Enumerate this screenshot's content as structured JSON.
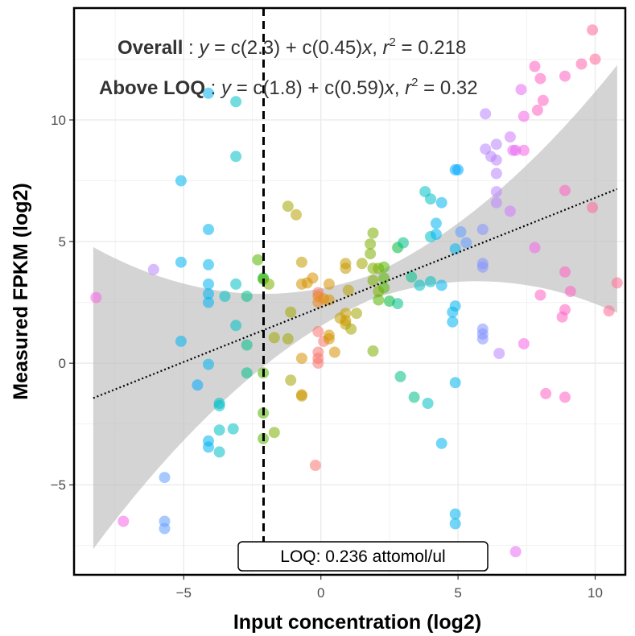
{
  "chart_data": {
    "type": "scatter",
    "xlabel": "Input concentration (log2)",
    "ylabel": "Measured FPKM (log2)",
    "xlim": [
      -9,
      11.1
    ],
    "ylim": [
      -8.7,
      14.6
    ],
    "x_ticks": [
      -5,
      0,
      5,
      10
    ],
    "x_tick_labels": [
      "−5",
      "0",
      "5",
      "10"
    ],
    "y_ticks": [
      -5,
      0,
      5,
      10
    ],
    "y_tick_labels": [
      "−5",
      "0",
      "5",
      "10"
    ],
    "grid": true,
    "panel_border": true,
    "loq_line": {
      "x": -2.09,
      "style": "dashed",
      "color": "#000000"
    },
    "loq_label": "LOQ: 0.236 attomol/ul",
    "equations": [
      {
        "label": "Overall",
        "intercept": "2.3",
        "slope": "0.45",
        "r2": "0.218"
      },
      {
        "label": "Above LOQ",
        "intercept": "1.8",
        "slope": "0.59",
        "r2": "0.32"
      }
    ],
    "fit": {
      "intercept": 2.3,
      "slope": 0.45,
      "x_range": [
        -8.3,
        10.8
      ],
      "line_style": "dotted",
      "ci_color": "#bdbdbd"
    },
    "point_opacity": 0.55,
    "points": [
      {
        "x": -8.2,
        "y": 2.7,
        "color": "#f564e3"
      },
      {
        "x": -7.2,
        "y": -6.5,
        "color": "#f564e3"
      },
      {
        "x": -6.1,
        "y": 3.85,
        "color": "#b983ff"
      },
      {
        "x": -5.7,
        "y": -4.7,
        "color": "#619cff"
      },
      {
        "x": -5.7,
        "y": -6.5,
        "color": "#619cff"
      },
      {
        "x": -5.7,
        "y": -6.8,
        "color": "#619cff"
      },
      {
        "x": -5.1,
        "y": 7.5,
        "color": "#00b4f0"
      },
      {
        "x": -5.1,
        "y": 4.15,
        "color": "#00b4f0"
      },
      {
        "x": -5.1,
        "y": 0.9,
        "color": "#00b4f0"
      },
      {
        "x": -4.5,
        "y": -0.9,
        "color": "#00a9ff"
      },
      {
        "x": -4.1,
        "y": 11.1,
        "color": "#00b4f0"
      },
      {
        "x": -4.1,
        "y": 5.5,
        "color": "#00b4f0"
      },
      {
        "x": -4.1,
        "y": 4.05,
        "color": "#00b4f0"
      },
      {
        "x": -4.1,
        "y": 3.25,
        "color": "#00b4f0"
      },
      {
        "x": -4.1,
        "y": 2.85,
        "color": "#00b4f0"
      },
      {
        "x": -4.1,
        "y": 2.5,
        "color": "#00b4f0"
      },
      {
        "x": -4.1,
        "y": -0.05,
        "color": "#00b4f0"
      },
      {
        "x": -4.1,
        "y": -3.2,
        "color": "#00b4f0"
      },
      {
        "x": -4.1,
        "y": -3.45,
        "color": "#00b4f0"
      },
      {
        "x": -3.7,
        "y": -1.65,
        "color": "#00bfc4"
      },
      {
        "x": -3.7,
        "y": -1.75,
        "color": "#00bfc4"
      },
      {
        "x": -3.7,
        "y": -2.75,
        "color": "#00bfc4"
      },
      {
        "x": -3.7,
        "y": -3.65,
        "color": "#00bfc4"
      },
      {
        "x": -3.5,
        "y": 2.75,
        "color": "#00bfc4"
      },
      {
        "x": -3.1,
        "y": 10.75,
        "color": "#00bfc4"
      },
      {
        "x": -3.1,
        "y": 8.5,
        "color": "#00bfc4"
      },
      {
        "x": -3.1,
        "y": 3.25,
        "color": "#00bfc4"
      },
      {
        "x": -3.1,
        "y": 1.55,
        "color": "#00bfc4"
      },
      {
        "x": -3.2,
        "y": -2.7,
        "color": "#00bfc4"
      },
      {
        "x": -2.7,
        "y": 2.75,
        "color": "#00c08b"
      },
      {
        "x": -2.7,
        "y": 0.75,
        "color": "#00c08b"
      },
      {
        "x": -2.7,
        "y": -0.4,
        "color": "#00c08b"
      },
      {
        "x": -2.3,
        "y": 4.25,
        "color": "#53b400"
      },
      {
        "x": -2.1,
        "y": 3.5,
        "color": "#00ba38"
      },
      {
        "x": -2.1,
        "y": 3.45,
        "color": "#53b400"
      },
      {
        "x": -1.9,
        "y": 3.25,
        "color": "#7cae00"
      },
      {
        "x": -2.1,
        "y": -0.4,
        "color": "#53b400"
      },
      {
        "x": -2.1,
        "y": -2.05,
        "color": "#53b400"
      },
      {
        "x": -2.1,
        "y": -3.1,
        "color": "#53b400"
      },
      {
        "x": -1.7,
        "y": -2.85,
        "color": "#7cae00"
      },
      {
        "x": -1.7,
        "y": 1.05,
        "color": "#a3a500"
      },
      {
        "x": -1.2,
        "y": 6.45,
        "color": "#a3a500"
      },
      {
        "x": -0.9,
        "y": 6.1,
        "color": "#b8a000"
      },
      {
        "x": -1.1,
        "y": 2.1,
        "color": "#a3a500"
      },
      {
        "x": -1.2,
        "y": 1.0,
        "color": "#a3a500"
      },
      {
        "x": -1.1,
        "y": -0.7,
        "color": "#a3a500"
      },
      {
        "x": -0.7,
        "y": 4.15,
        "color": "#c49a00"
      },
      {
        "x": -0.7,
        "y": 3.25,
        "color": "#d39200"
      },
      {
        "x": -0.5,
        "y": 3.3,
        "color": "#d39200"
      },
      {
        "x": -0.7,
        "y": 0.2,
        "color": "#d39200"
      },
      {
        "x": -0.7,
        "y": -1.3,
        "color": "#d39200"
      },
      {
        "x": -0.7,
        "y": -1.35,
        "color": "#c49a00"
      },
      {
        "x": -0.3,
        "y": 3.5,
        "color": "#d89000"
      },
      {
        "x": -0.1,
        "y": 2.9,
        "color": "#f8766d"
      },
      {
        "x": -0.1,
        "y": 2.75,
        "color": "#e7861b"
      },
      {
        "x": -0.1,
        "y": 2.5,
        "color": "#e7861b"
      },
      {
        "x": 0.1,
        "y": 2.65,
        "color": "#e7861b"
      },
      {
        "x": -0.1,
        "y": 1.3,
        "color": "#f8766d"
      },
      {
        "x": -0.1,
        "y": 0.45,
        "color": "#f8766d"
      },
      {
        "x": -0.1,
        "y": 0.2,
        "color": "#f8766d"
      },
      {
        "x": -0.1,
        "y": 0.0,
        "color": "#f8766d"
      },
      {
        "x": 0.1,
        "y": 0.9,
        "color": "#f8766d"
      },
      {
        "x": -0.2,
        "y": -4.2,
        "color": "#f8766d"
      },
      {
        "x": 0.3,
        "y": 3.25,
        "color": "#d39200"
      },
      {
        "x": 0.3,
        "y": 2.6,
        "color": "#d39200"
      },
      {
        "x": 0.3,
        "y": 1.15,
        "color": "#d39200"
      },
      {
        "x": 0.3,
        "y": 1.0,
        "color": "#d39200"
      },
      {
        "x": 0.5,
        "y": 0.45,
        "color": "#d39200"
      },
      {
        "x": 0.7,
        "y": 1.85,
        "color": "#c49a00"
      },
      {
        "x": 0.9,
        "y": 4.1,
        "color": "#c49a00"
      },
      {
        "x": 0.9,
        "y": 3.9,
        "color": "#c49a00"
      },
      {
        "x": 0.9,
        "y": 2.05,
        "color": "#c49a00"
      },
      {
        "x": 0.9,
        "y": 1.75,
        "color": "#c49a00"
      },
      {
        "x": 0.9,
        "y": 1.6,
        "color": "#c49a00"
      },
      {
        "x": 1.0,
        "y": 3.0,
        "color": "#b8a000"
      },
      {
        "x": 1.1,
        "y": 1.4,
        "color": "#a3a500"
      },
      {
        "x": 1.3,
        "y": 2.05,
        "color": "#a3a500"
      },
      {
        "x": 1.5,
        "y": 4.1,
        "color": "#a3a500"
      },
      {
        "x": 1.9,
        "y": 5.35,
        "color": "#7cae00"
      },
      {
        "x": 1.8,
        "y": 4.9,
        "color": "#7cae00"
      },
      {
        "x": 1.8,
        "y": 4.5,
        "color": "#7cae00"
      },
      {
        "x": 1.9,
        "y": 3.9,
        "color": "#7cae00"
      },
      {
        "x": 2.1,
        "y": 3.9,
        "color": "#7cae00"
      },
      {
        "x": 1.9,
        "y": 3.4,
        "color": "#7cae00"
      },
      {
        "x": 2.1,
        "y": 2.95,
        "color": "#7cae00"
      },
      {
        "x": 2.1,
        "y": 2.6,
        "color": "#53b400"
      },
      {
        "x": 1.9,
        "y": 0.5,
        "color": "#7cae00"
      },
      {
        "x": 2.3,
        "y": 3.95,
        "color": "#53b400"
      },
      {
        "x": 2.3,
        "y": 3.5,
        "color": "#53b400"
      },
      {
        "x": 2.3,
        "y": 3.1,
        "color": "#53b400"
      },
      {
        "x": 2.5,
        "y": 2.55,
        "color": "#00ba38"
      },
      {
        "x": 2.8,
        "y": 4.75,
        "color": "#00ba38"
      },
      {
        "x": 2.8,
        "y": 2.45,
        "color": "#00c08b"
      },
      {
        "x": 3.0,
        "y": 4.95,
        "color": "#00c08b"
      },
      {
        "x": 2.9,
        "y": -0.55,
        "color": "#00c08b"
      },
      {
        "x": 3.3,
        "y": 3.55,
        "color": "#00c08b"
      },
      {
        "x": 3.4,
        "y": -1.4,
        "color": "#00c08b"
      },
      {
        "x": 3.6,
        "y": 3.2,
        "color": "#00bfc4"
      },
      {
        "x": 3.8,
        "y": 7.05,
        "color": "#00bfc4"
      },
      {
        "x": 3.9,
        "y": -1.65,
        "color": "#00bfc4"
      },
      {
        "x": 4.0,
        "y": 6.75,
        "color": "#00bfc4"
      },
      {
        "x": 4.0,
        "y": 5.2,
        "color": "#00bfc4"
      },
      {
        "x": 4.0,
        "y": 3.35,
        "color": "#00bfc4"
      },
      {
        "x": 4.2,
        "y": 5.75,
        "color": "#00b4f0"
      },
      {
        "x": 4.2,
        "y": 5.3,
        "color": "#00b4f0"
      },
      {
        "x": 4.4,
        "y": 6.6,
        "color": "#00b4f0"
      },
      {
        "x": 4.4,
        "y": 3.2,
        "color": "#00b4f0"
      },
      {
        "x": 4.4,
        "y": -3.3,
        "color": "#00b4f0"
      },
      {
        "x": 4.8,
        "y": 2.1,
        "color": "#00b4f0"
      },
      {
        "x": 4.8,
        "y": 1.7,
        "color": "#00b4f0"
      },
      {
        "x": 4.9,
        "y": 4.7,
        "color": "#00b4f0"
      },
      {
        "x": 4.9,
        "y": 2.35,
        "color": "#00b4f0"
      },
      {
        "x": 4.9,
        "y": -0.8,
        "color": "#00b4f0"
      },
      {
        "x": 4.9,
        "y": -6.2,
        "color": "#00b4f0"
      },
      {
        "x": 4.9,
        "y": -6.6,
        "color": "#00b4f0"
      },
      {
        "x": 5.0,
        "y": 7.95,
        "color": "#00a9ff"
      },
      {
        "x": 4.9,
        "y": 7.95,
        "color": "#00a9ff"
      },
      {
        "x": 5.1,
        "y": 5.4,
        "color": "#619cff"
      },
      {
        "x": 5.3,
        "y": 4.95,
        "color": "#619cff"
      },
      {
        "x": 5.9,
        "y": 5.5,
        "color": "#8494ff"
      },
      {
        "x": 5.9,
        "y": 4.1,
        "color": "#8494ff"
      },
      {
        "x": 5.9,
        "y": 3.95,
        "color": "#8494ff"
      },
      {
        "x": 5.9,
        "y": 1.4,
        "color": "#8494ff"
      },
      {
        "x": 5.9,
        "y": 1.2,
        "color": "#8494ff"
      },
      {
        "x": 5.9,
        "y": 1.0,
        "color": "#8494ff"
      },
      {
        "x": 6.0,
        "y": 10.25,
        "color": "#b983ff"
      },
      {
        "x": 6.0,
        "y": 8.8,
        "color": "#b983ff"
      },
      {
        "x": 6.2,
        "y": 8.5,
        "color": "#b983ff"
      },
      {
        "x": 6.4,
        "y": 9.0,
        "color": "#b983ff"
      },
      {
        "x": 6.4,
        "y": 8.35,
        "color": "#b983ff"
      },
      {
        "x": 6.4,
        "y": 7.8,
        "color": "#b983ff"
      },
      {
        "x": 6.4,
        "y": 7.05,
        "color": "#b983ff"
      },
      {
        "x": 6.4,
        "y": 6.6,
        "color": "#b983ff"
      },
      {
        "x": 6.5,
        "y": 0.4,
        "color": "#b983ff"
      },
      {
        "x": 6.9,
        "y": 9.3,
        "color": "#cf78ff"
      },
      {
        "x": 6.9,
        "y": 6.25,
        "color": "#cf78ff"
      },
      {
        "x": 7.0,
        "y": 8.75,
        "color": "#e76bf3"
      },
      {
        "x": 7.1,
        "y": 8.75,
        "color": "#e76bf3"
      },
      {
        "x": 7.1,
        "y": -7.75,
        "color": "#e76bf3"
      },
      {
        "x": 7.3,
        "y": 11.25,
        "color": "#e76bf3"
      },
      {
        "x": 7.4,
        "y": 10.15,
        "color": "#f564e3"
      },
      {
        "x": 7.4,
        "y": 8.75,
        "color": "#f564e3"
      },
      {
        "x": 7.4,
        "y": 0.8,
        "color": "#f564e3"
      },
      {
        "x": 7.8,
        "y": 4.75,
        "color": "#f564e3"
      },
      {
        "x": 7.8,
        "y": 12.2,
        "color": "#ff61c3"
      },
      {
        "x": 7.9,
        "y": 10.4,
        "color": "#ff61c3"
      },
      {
        "x": 8.0,
        "y": 11.7,
        "color": "#ff61c3"
      },
      {
        "x": 8.0,
        "y": 2.8,
        "color": "#ff61c3"
      },
      {
        "x": 8.1,
        "y": 10.8,
        "color": "#ff61c3"
      },
      {
        "x": 8.2,
        "y": -1.25,
        "color": "#ff61c3"
      },
      {
        "x": 8.8,
        "y": 1.9,
        "color": "#ff61c3"
      },
      {
        "x": 8.9,
        "y": 11.8,
        "color": "#ff61c3"
      },
      {
        "x": 8.9,
        "y": 7.1,
        "color": "#ff61c3"
      },
      {
        "x": 8.9,
        "y": 3.75,
        "color": "#ff61c3"
      },
      {
        "x": 8.9,
        "y": 2.2,
        "color": "#ff61c3"
      },
      {
        "x": 8.9,
        "y": -1.4,
        "color": "#ff61c3"
      },
      {
        "x": 9.1,
        "y": 2.95,
        "color": "#ff61c3"
      },
      {
        "x": 9.5,
        "y": 12.3,
        "color": "#ff65ac"
      },
      {
        "x": 9.9,
        "y": 13.7,
        "color": "#ff6a98"
      },
      {
        "x": 10.0,
        "y": 12.5,
        "color": "#ff6a98"
      },
      {
        "x": 9.9,
        "y": 6.4,
        "color": "#ff6a98"
      },
      {
        "x": 10.5,
        "y": 2.15,
        "color": "#ff6c91"
      },
      {
        "x": 10.8,
        "y": 3.3,
        "color": "#ff6c91"
      }
    ]
  }
}
